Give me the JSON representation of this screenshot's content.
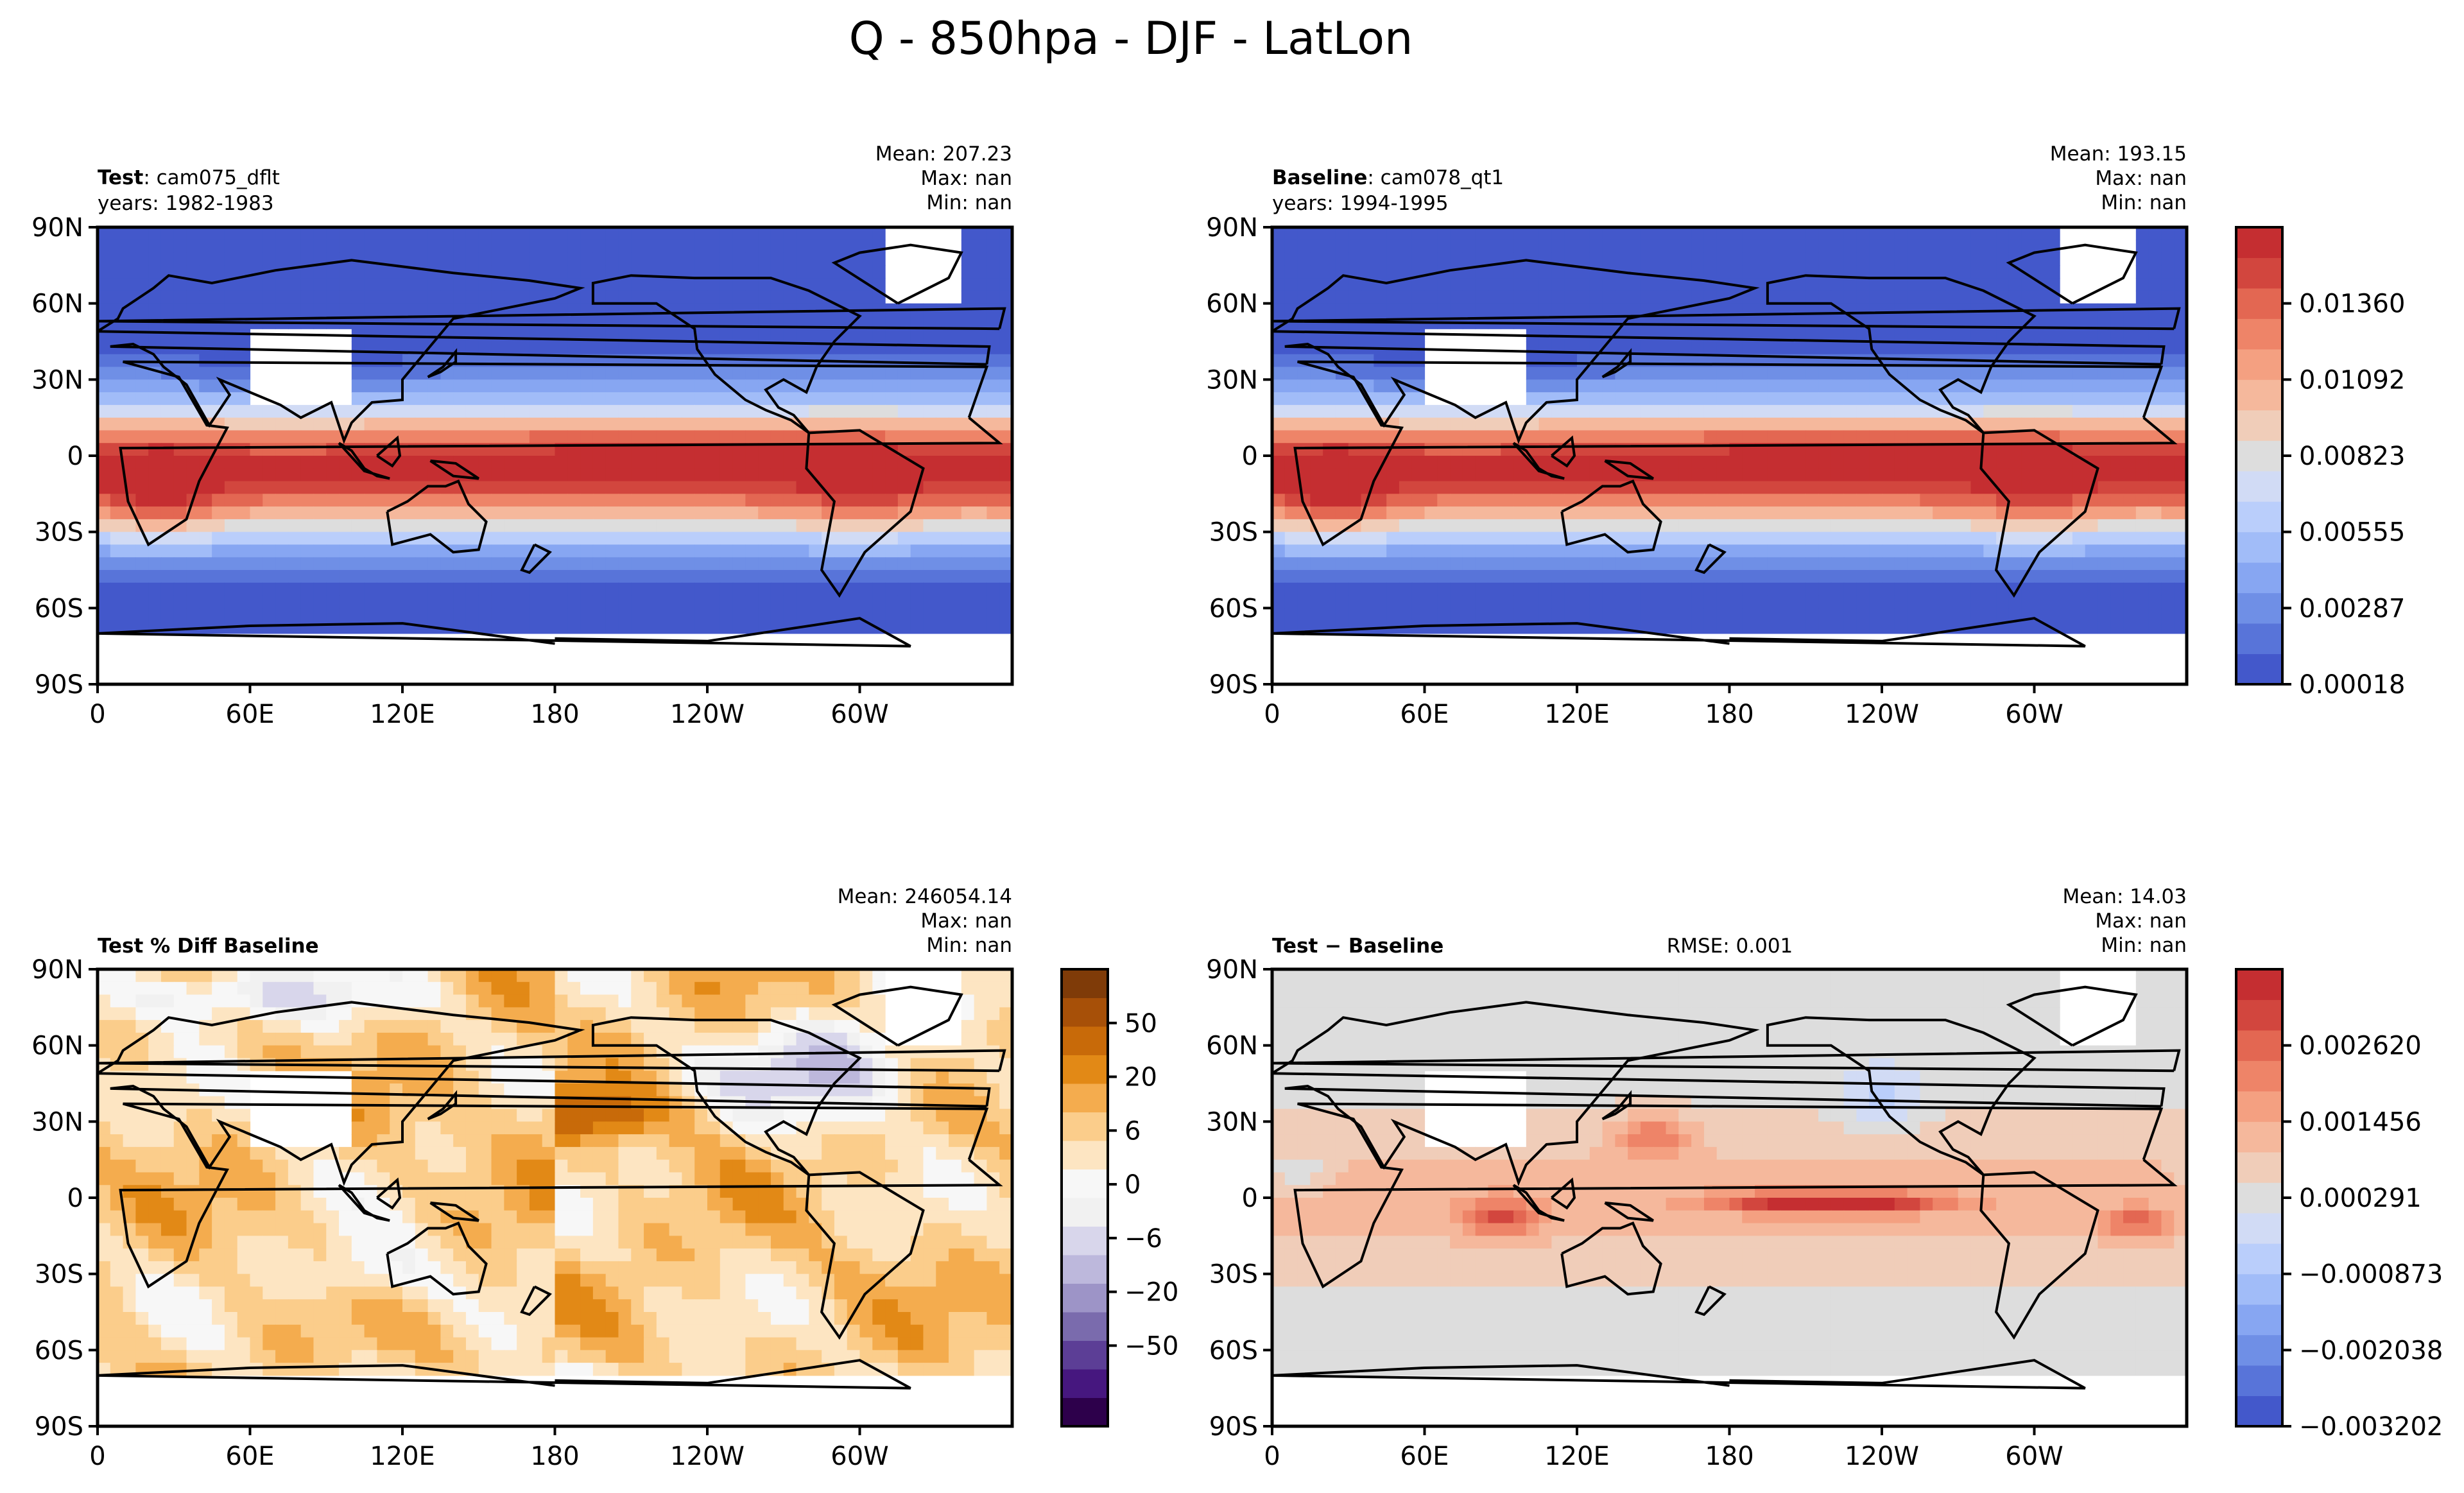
{
  "figure": {
    "title": "Q - 850hpa - DJF - LatLon"
  },
  "axes": {
    "lat_ticks": [
      "90N",
      "60N",
      "30N",
      "0",
      "30S",
      "60S",
      "90S"
    ],
    "lon_ticks": [
      "0",
      "60E",
      "120E",
      "180",
      "120W",
      "60W"
    ]
  },
  "panels": [
    {
      "id": "test",
      "label_bold": "Test",
      "label_rest": ": cam075_dflt",
      "years": "years: 1982-1983",
      "stats": {
        "mean": "Mean: 207.23",
        "max": "Max:   nan",
        "min": "Min:   nan"
      },
      "field": "q"
    },
    {
      "id": "baseline",
      "label_bold": "Baseline",
      "label_rest": ": cam078_qt1",
      "years": "years: 1994-1995",
      "stats": {
        "mean": "Mean: 193.15",
        "max": "Max:   nan",
        "min": "Min:   nan"
      },
      "field": "q"
    },
    {
      "id": "pctdiff",
      "label_bold": "Test % Diff Baseline",
      "stats": {
        "mean": "Mean: 246054.14",
        "max": "Max:   nan",
        "min": "Min:   nan"
      },
      "field": "pct"
    },
    {
      "id": "diff",
      "label_bold": "Test − Baseline",
      "rmse": "RMSE: 0.001",
      "stats": {
        "mean": "Mean: 14.03",
        "max": "Max:   nan",
        "min": "Min:   nan"
      },
      "field": "diff"
    }
  ],
  "colorbars": {
    "q": {
      "ticks": [
        "0.00018",
        "0.00287",
        "0.00555",
        "0.00823",
        "0.01092",
        "0.01360"
      ],
      "colors": [
        "#4358cb",
        "#5874d9",
        "#6f8fe6",
        "#87a6f2",
        "#a1bcf8",
        "#bacefb",
        "#d1dbf5",
        "#dddddd",
        "#f0cdb9",
        "#f5b89c",
        "#f4a081",
        "#ee8468",
        "#e36752",
        "#d2463e",
        "#c52e31"
      ]
    },
    "pct": {
      "ticks": [
        "−50",
        "−20",
        "−6",
        "0",
        "6",
        "20",
        "50"
      ],
      "colors": [
        "#2d004b",
        "#46177f",
        "#5c3e96",
        "#7a6bad",
        "#9d94c7",
        "#bdb8dc",
        "#d8d6eb",
        "#f1f1f1",
        "#f7f7f7",
        "#fde5c2",
        "#fbcd8b",
        "#f4ac4e",
        "#e28916",
        "#c86a09",
        "#a75008",
        "#7f3b08"
      ]
    },
    "diff": {
      "ticks": [
        "−0.003202",
        "−0.002038",
        "−0.000873",
        "0.000291",
        "0.001456",
        "0.002620"
      ],
      "colors": [
        "#4358cb",
        "#5874d9",
        "#6f8fe6",
        "#87a6f2",
        "#a1bcf8",
        "#bacefb",
        "#d1dbf5",
        "#dddddd",
        "#f0cdb9",
        "#f5b89c",
        "#f4a081",
        "#ee8468",
        "#e36752",
        "#d2463e",
        "#c52e31"
      ]
    }
  },
  "chart_data": {
    "type": "heatmap",
    "title": "Q - 850hpa - DJF - LatLon",
    "xlabel": "",
    "ylabel": "",
    "x_range": [
      0,
      360
    ],
    "y_range": [
      -90,
      90
    ],
    "maps": [
      {
        "name": "Test: cam075_dflt",
        "mean": 207.23,
        "max": "nan",
        "min": "nan",
        "vmin": 0.00018,
        "vmax": 0.0149
      },
      {
        "name": "Baseline: cam078_qt1",
        "mean": 193.15,
        "max": "nan",
        "min": "nan",
        "vmin": 0.00018,
        "vmax": 0.0149
      },
      {
        "name": "Test % Diff Baseline",
        "mean": 246054.14,
        "max": "nan",
        "min": "nan",
        "vmin": -60,
        "vmax": 60
      },
      {
        "name": "Test − Baseline",
        "mean": 14.03,
        "max": "nan",
        "min": "nan",
        "rmse": 0.001,
        "vmin": -0.0032,
        "vmax": 0.0032
      }
    ]
  }
}
